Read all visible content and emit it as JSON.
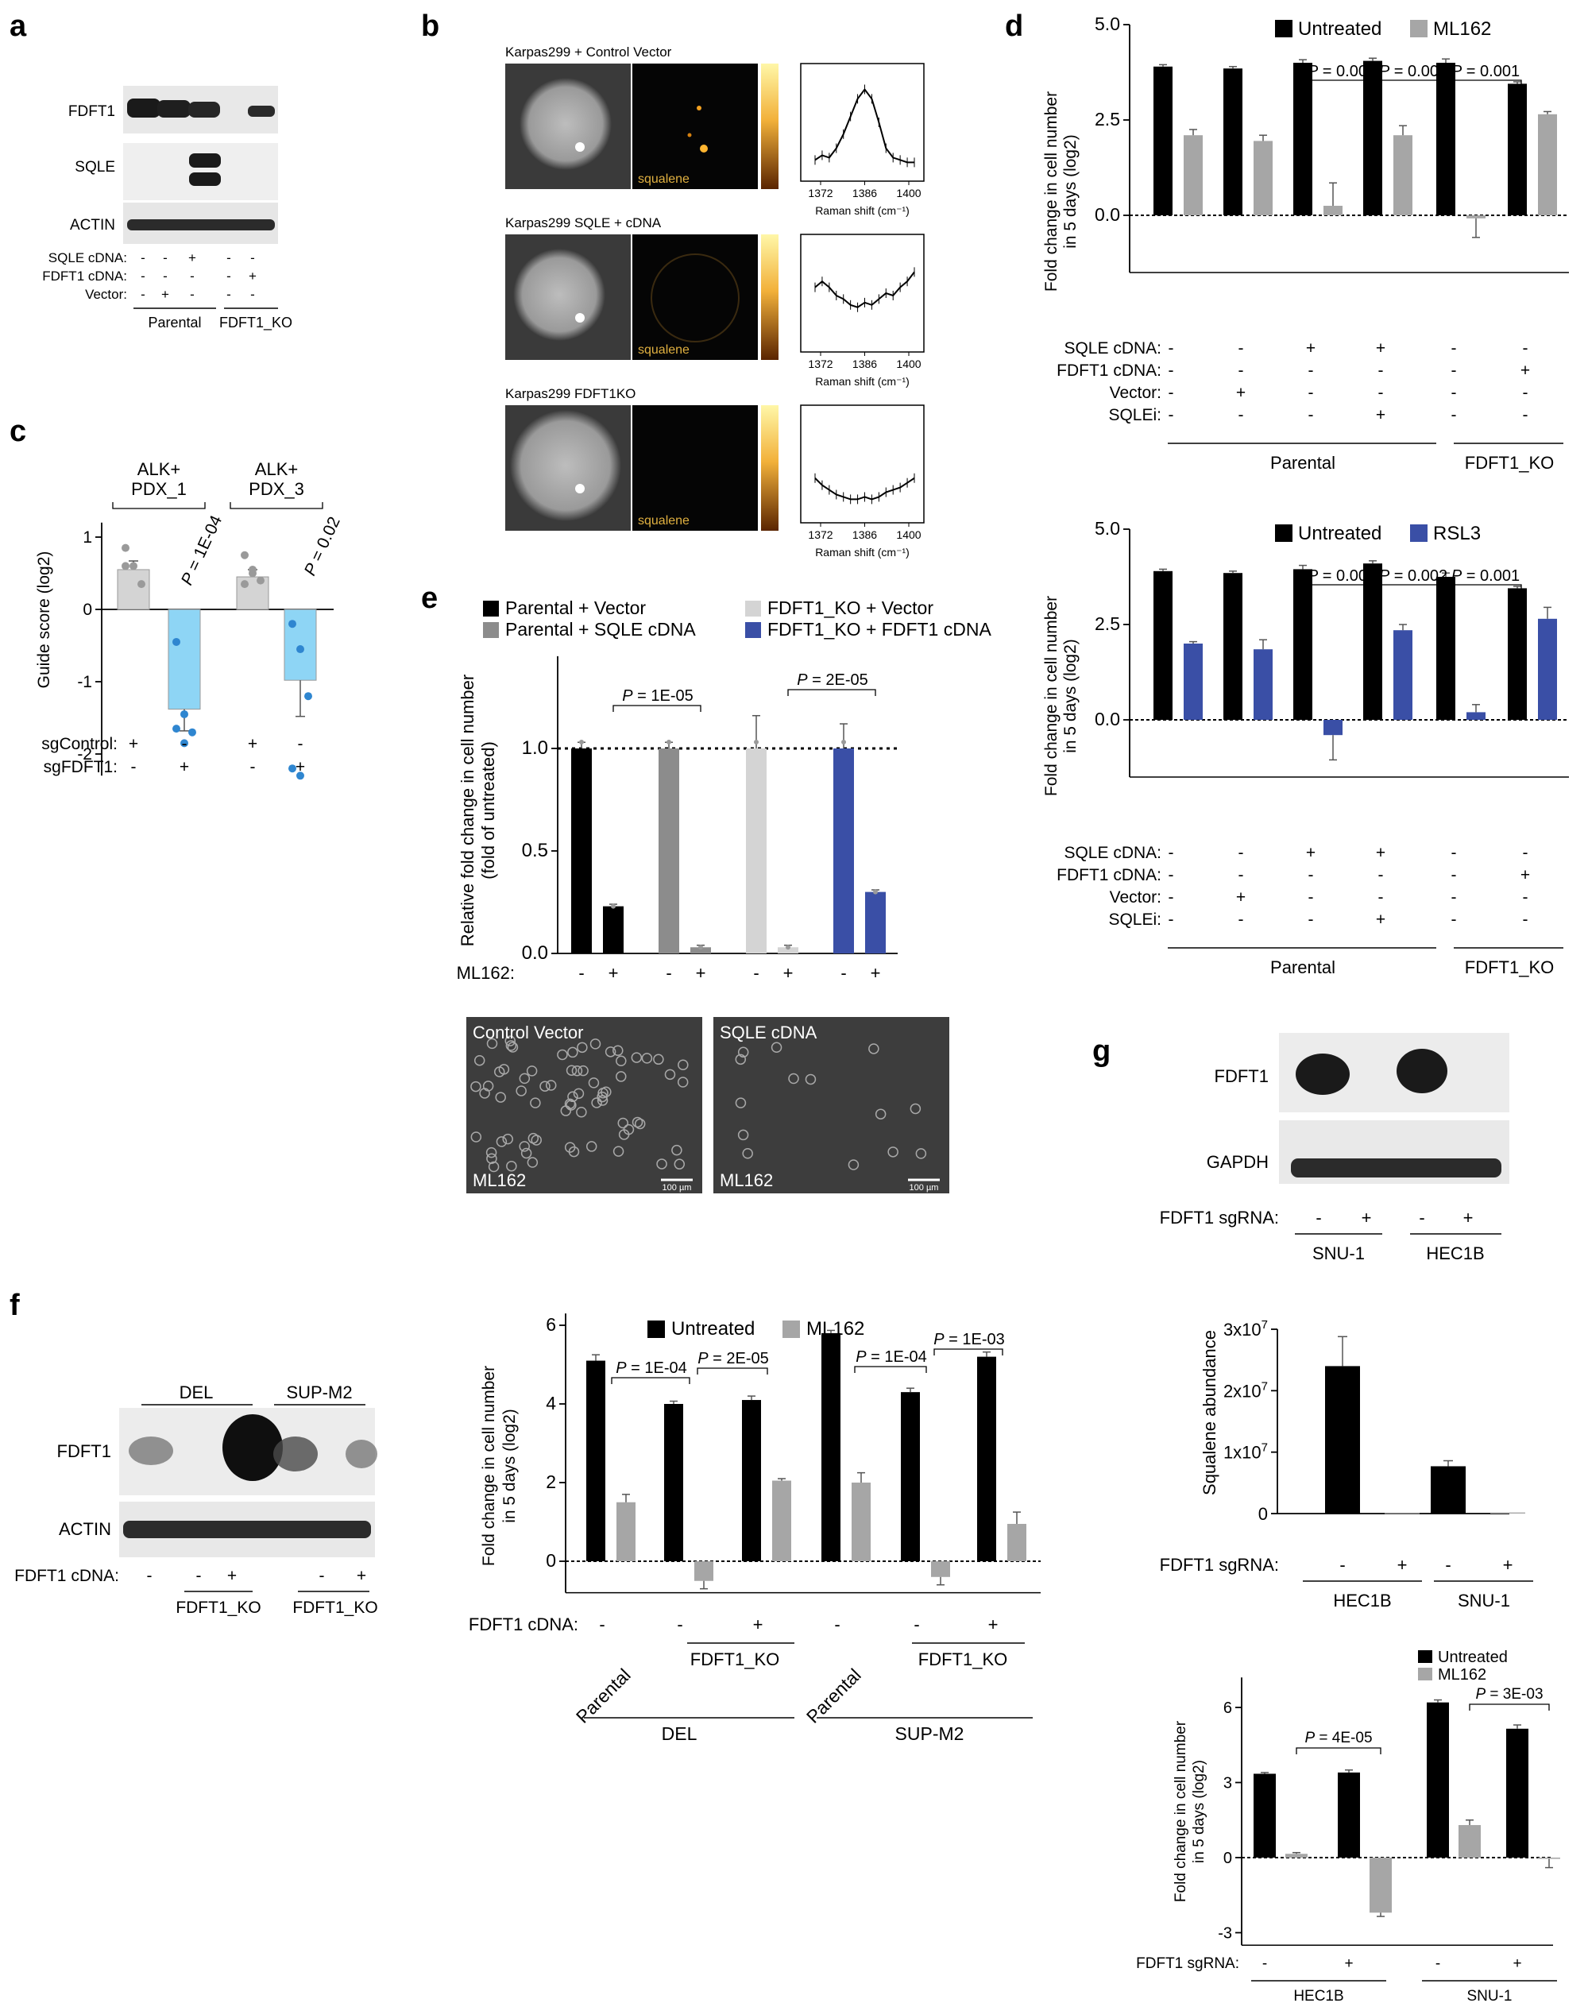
{
  "panel_letters": {
    "a": "a",
    "b": "b",
    "c": "c",
    "d": "d",
    "e": "e",
    "f": "f",
    "g": "g"
  },
  "a": {
    "blot_labels": [
      "FDFT1",
      "SQLE",
      "ACTIN"
    ],
    "row_labels": [
      "SQLE cDNA:",
      "FDFT1 cDNA:",
      "Vector:"
    ],
    "lanes": [
      [
        "-",
        "-",
        "-"
      ],
      [
        "-",
        "-",
        "+"
      ],
      [
        "+",
        "-",
        "-"
      ],
      [
        "-",
        "-",
        "-"
      ],
      [
        "-",
        "+",
        "-"
      ]
    ],
    "groups": [
      "Parental",
      "FDFT1_KO"
    ]
  },
  "b": {
    "rows": [
      {
        "title": "Karpas299 + Control Vector",
        "tag": "squalene"
      },
      {
        "title": "Karpas299 SQLE + cDNA",
        "tag": "squalene"
      },
      {
        "title": "Karpas299 FDFT1KO",
        "tag": "squalene"
      }
    ],
    "xlabel": "Raman shift (cm⁻¹)",
    "ticks": [
      "1372",
      "1386",
      "1400"
    ]
  },
  "c": {
    "groups": [
      "ALK+\nPDX_1",
      "ALK+\nPDX_3"
    ],
    "ylabel": "Guide score (log2)",
    "yticks": [
      "1",
      "0",
      "-1",
      "-2"
    ],
    "pvals": [
      "P = 1E-04",
      "P = 0.02"
    ],
    "row_labels": [
      "sgControl:",
      "sgFDFT1:"
    ],
    "signs": [
      [
        "+",
        "-",
        "+",
        "-"
      ],
      [
        "-",
        "+",
        "-",
        "+"
      ]
    ]
  },
  "d1": {
    "legend": [
      "Untreated",
      "ML162"
    ],
    "ylabel1": "Fold change in cell number",
    "ylabel2": "in 5 days (log2)",
    "yticks": [
      "5.0",
      "2.5",
      "0.0"
    ],
    "pvals": [
      "P = 0.009",
      "P = 0.008",
      "P = 0.001"
    ],
    "row_labels": [
      "SQLE cDNA:",
      "FDFT1 cDNA:",
      "Vector:",
      "SQLEi:"
    ],
    "signs": [
      [
        "-",
        "-",
        "+",
        "+",
        "-",
        "-"
      ],
      [
        "-",
        "-",
        "-",
        "-",
        "-",
        "+"
      ],
      [
        "-",
        "+",
        "-",
        "-",
        "-",
        "-"
      ],
      [
        "-",
        "-",
        "-",
        "+",
        "-",
        "-"
      ]
    ],
    "groups": [
      "Parental",
      "FDFT1_KO"
    ]
  },
  "d2": {
    "legend": [
      "Untreated",
      "RSL3"
    ],
    "ylabel1": "Fold change in cell number",
    "ylabel2": "in 5 days (log2)",
    "yticks": [
      "5.0",
      "2.5",
      "0.0"
    ],
    "pvals": [
      "P = 0.004",
      "P = 0.002",
      "P = 0.001"
    ],
    "row_labels": [
      "SQLE cDNA:",
      "FDFT1 cDNA:",
      "Vector:",
      "SQLEi:"
    ],
    "signs": [
      [
        "-",
        "-",
        "+",
        "+",
        "-",
        "-"
      ],
      [
        "-",
        "-",
        "-",
        "-",
        "-",
        "+"
      ],
      [
        "-",
        "+",
        "-",
        "-",
        "-",
        "-"
      ],
      [
        "-",
        "-",
        "-",
        "+",
        "-",
        "-"
      ]
    ],
    "groups": [
      "Parental",
      "FDFT1_KO"
    ]
  },
  "e": {
    "legend": [
      "Parental + Vector",
      "Parental + SQLE cDNA",
      "FDFT1_KO + Vector",
      "FDFT1_KO + FDFT1 cDNA"
    ],
    "ylabel1": "Relative fold change in cell number",
    "ylabel2": "(fold of untreated)",
    "yticks": [
      "1.0",
      "0.5",
      "0.0"
    ],
    "pvals": [
      "P = 1E-05",
      "P = 2E-05"
    ],
    "row_label": "ML162:",
    "signs": [
      "-",
      "+",
      "-",
      "+",
      "-",
      "+",
      "-",
      "+"
    ],
    "images": [
      {
        "title": "Control Vector",
        "tag": "ML162",
        "scale": "100 µm"
      },
      {
        "title": "SQLE cDNA",
        "tag": "ML162",
        "scale": "100 µm"
      }
    ]
  },
  "f_blot": {
    "groups": [
      "DEL",
      "SUP-M2"
    ],
    "blot_labels": [
      "FDFT1",
      "ACTIN"
    ],
    "row_label": "FDFT1 cDNA:",
    "signs": [
      "-",
      "-",
      "+",
      "-",
      "+"
    ],
    "ko": [
      "FDFT1_KO",
      "FDFT1_KO"
    ]
  },
  "f_chart": {
    "legend": [
      "Untreated",
      "ML162"
    ],
    "ylabel1": "Fold change in cell number",
    "ylabel2": "in 5 days (log2)",
    "yticks": [
      "6",
      "4",
      "2",
      "0"
    ],
    "pvals": [
      "P = 1E-04",
      "P = 2E-05",
      "P = 1E-04",
      "P = 1E-03"
    ],
    "row_label": "FDFT1 cDNA:",
    "signs": [
      "-",
      "-",
      "+",
      "-",
      "-",
      "+"
    ],
    "cond": [
      "Parental",
      "FDFT1_KO",
      "Parental",
      "FDFT1_KO"
    ],
    "groups": [
      "DEL",
      "SUP-M2"
    ]
  },
  "g_blot": {
    "blot_labels": [
      "FDFT1",
      "GAPDH"
    ],
    "row_label": "FDFT1 sgRNA:",
    "signs": [
      "-",
      "+",
      "-",
      "+"
    ],
    "groups": [
      "SNU-1",
      "HEC1B"
    ]
  },
  "g_squalene": {
    "ylabel": "Squalene abundance",
    "yticks": [
      "3x10",
      "2x10",
      "1x10",
      "0"
    ],
    "exp": "7",
    "row_label": "FDFT1 sgRNA:",
    "signs": [
      "-",
      "+",
      "-",
      "+"
    ],
    "groups": [
      "HEC1B",
      "SNU-1"
    ]
  },
  "g_fold": {
    "legend": [
      "Untreated",
      "ML162"
    ],
    "ylabel1": "Fold change in cell number",
    "ylabel2": "in 5 days (log2)",
    "yticks": [
      "6",
      "3",
      "0",
      "-3"
    ],
    "pvals": [
      "P = 4E-05",
      "P = 3E-03"
    ],
    "row_label": "FDFT1 sgRNA:",
    "signs": [
      "-",
      "+",
      "-",
      "+"
    ],
    "groups": [
      "HEC1B",
      "SNU-1"
    ]
  },
  "colors": {
    "black": "#000000",
    "gray": "#a6a6a6",
    "lightgray": "#d4d4d4",
    "midgray": "#8c8c8c",
    "blue": "#3a4fa6",
    "cyan": "#8ed5f5",
    "dotblue": "#2f86d0",
    "dot": "#9a9a9a"
  },
  "chart_data": [
    {
      "type": "bar",
      "panel": "c",
      "ylabel": "Guide score (log2)",
      "ylim": [
        -2.4,
        1.2
      ],
      "categories": [
        "PDX_1 sgControl",
        "PDX_1 sgFDFT1",
        "PDX_3 sgControl",
        "PDX_3 sgFDFT1"
      ],
      "values": [
        0.55,
        -1.38,
        0.45,
        -0.98
      ],
      "errors": [
        0.12,
        0.3,
        0.1,
        0.5
      ]
    },
    {
      "type": "bar",
      "panel": "d-top",
      "ylabel": "Fold change in cell number in 5 days (log2)",
      "ylim": [
        -1.5,
        5
      ],
      "categories": [
        "1",
        "2",
        "3",
        "4",
        "5",
        "6"
      ],
      "series": [
        {
          "name": "Untreated",
          "values": [
            3.9,
            3.85,
            4.0,
            4.05,
            4.0,
            3.45
          ],
          "errors": [
            0.05,
            0.05,
            0.08,
            0.07,
            0.1,
            0.05
          ]
        },
        {
          "name": "ML162",
          "values": [
            2.1,
            1.95,
            0.25,
            2.1,
            -0.08,
            2.65
          ],
          "errors": [
            0.15,
            0.15,
            0.6,
            0.25,
            0.5,
            0.07
          ]
        }
      ]
    },
    {
      "type": "bar",
      "panel": "d-bottom",
      "ylabel": "Fold change in cell number in 5 days (log2)",
      "ylim": [
        -1.5,
        5
      ],
      "categories": [
        "1",
        "2",
        "3",
        "4",
        "5",
        "6"
      ],
      "series": [
        {
          "name": "Untreated",
          "values": [
            3.9,
            3.85,
            3.95,
            4.1,
            3.75,
            3.45
          ],
          "errors": [
            0.05,
            0.05,
            0.1,
            0.07,
            0.1,
            0.05
          ]
        },
        {
          "name": "RSL3",
          "values": [
            2.0,
            1.85,
            -0.4,
            2.35,
            0.2,
            2.65
          ],
          "errors": [
            0.05,
            0.25,
            0.65,
            0.15,
            0.2,
            0.3
          ]
        }
      ]
    },
    {
      "type": "bar",
      "panel": "e",
      "ylabel": "Relative fold change in cell number (fold of untreated)",
      "ylim": [
        0,
        1.45
      ],
      "categories": [
        "Parental + Vector",
        "Parental + SQLE cDNA",
        "FDFT1_KO + Vector",
        "FDFT1_KO + FDFT1 cDNA"
      ],
      "series": [
        {
          "name": "ML162 -",
          "values": [
            1.0,
            1.0,
            1.0,
            1.0
          ],
          "errors": [
            0.03,
            0.03,
            0.16,
            0.12
          ]
        },
        {
          "name": "ML162 +",
          "values": [
            0.23,
            0.03,
            0.03,
            0.3
          ],
          "errors": [
            0.01,
            0.01,
            0.01,
            0.01
          ]
        }
      ]
    },
    {
      "type": "bar",
      "panel": "f",
      "ylabel": "Fold change in cell number in 5 days (log2)",
      "ylim": [
        -0.8,
        6.3
      ],
      "categories": [
        "DEL Parental",
        "DEL FDFT1_KO",
        "DEL FDFT1_KO + FDFT1 cDNA",
        "SUP-M2 Parental",
        "SUP-M2 FDFT1_KO",
        "SUP-M2 FDFT1_KO + FDFT1 cDNA"
      ],
      "series": [
        {
          "name": "Untreated",
          "values": [
            5.1,
            4.0,
            4.1,
            5.8,
            4.3,
            5.2
          ],
          "errors": [
            0.15,
            0.07,
            0.1,
            0.07,
            0.1,
            0.12
          ]
        },
        {
          "name": "ML162",
          "values": [
            1.5,
            -0.5,
            2.05,
            2.0,
            -0.4,
            0.95
          ],
          "errors": [
            0.2,
            0.2,
            0.05,
            0.25,
            0.2,
            0.3
          ]
        }
      ]
    },
    {
      "type": "bar",
      "panel": "g-squalene",
      "ylabel": "Squalene abundance",
      "ylim": [
        0,
        30000000
      ],
      "categories": [
        "HEC1B -",
        "HEC1B +",
        "SNU-1 -",
        "SNU-1 +"
      ],
      "values": [
        24000000,
        80000,
        7700000,
        180000
      ],
      "errors": [
        4800000,
        0,
        900000,
        0
      ]
    },
    {
      "type": "bar",
      "panel": "g-fold",
      "ylabel": "Fold change in cell number in 5 days (log2)",
      "ylim": [
        -3.5,
        7.2
      ],
      "categories": [
        "HEC1B -",
        "HEC1B +",
        "SNU-1 -",
        "SNU-1 +"
      ],
      "series": [
        {
          "name": "Untreated",
          "values": [
            3.35,
            3.4,
            6.2,
            5.15
          ],
          "errors": [
            0.05,
            0.1,
            0.1,
            0.15
          ]
        },
        {
          "name": "ML162",
          "values": [
            0.15,
            -2.2,
            1.3,
            -0.05
          ],
          "errors": [
            0.05,
            0.15,
            0.2,
            0.35
          ]
        }
      ]
    }
  ]
}
